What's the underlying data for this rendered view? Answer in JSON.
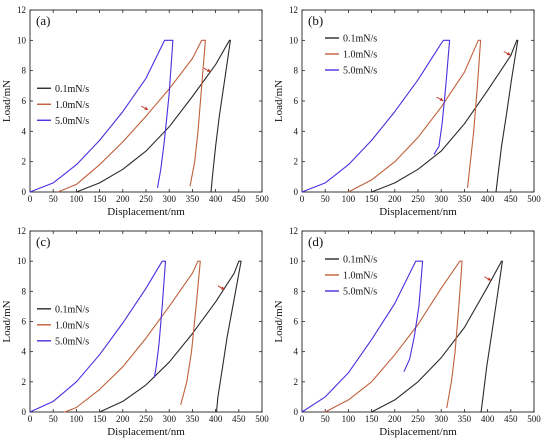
{
  "chart_data": [
    {
      "type": "line",
      "panel_label": "(a)",
      "xlabel": "Displacement/nm",
      "ylabel": "Load/mN",
      "xlim": [
        0,
        500
      ],
      "ylim": [
        0,
        12
      ],
      "xticks": [
        0,
        50,
        100,
        150,
        200,
        250,
        300,
        350,
        400,
        450,
        500
      ],
      "yticks": [
        0,
        2,
        4,
        6,
        8,
        10,
        12
      ],
      "legend_position": "middle-left",
      "series": [
        {
          "name": "0.1mN/s",
          "color": "#2b2b2b",
          "loading": [
            [
              100,
              0
            ],
            [
              150,
              0.6
            ],
            [
              200,
              1.5
            ],
            [
              250,
              2.7
            ],
            [
              300,
              4.3
            ],
            [
              350,
              6.3
            ],
            [
              400,
              8.4
            ],
            [
              430,
              10
            ]
          ],
          "hold": [
            [
              430,
              10
            ],
            [
              432,
              10
            ]
          ],
          "unloading": [
            [
              432,
              10
            ],
            [
              420,
              7.5
            ],
            [
              408,
              5
            ],
            [
              400,
              3
            ],
            [
              393,
              1
            ],
            [
              390,
              0
            ]
          ]
        },
        {
          "name": "1.0mN/s",
          "color": "#c0603a",
          "loading": [
            [
              60,
              0
            ],
            [
              100,
              0.5
            ],
            [
              150,
              1.8
            ],
            [
              200,
              3.3
            ],
            [
              250,
              5
            ],
            [
              300,
              6.8
            ],
            [
              350,
              8.8
            ],
            [
              370,
              10
            ]
          ],
          "hold": [
            [
              370,
              10
            ],
            [
              378,
              10
            ]
          ],
          "unloading": [
            [
              378,
              10
            ],
            [
              370,
              7
            ],
            [
              362,
              4
            ],
            [
              355,
              2
            ],
            [
              345,
              0.4
            ]
          ]
        },
        {
          "name": "5.0mN/s",
          "color": "#4a2ee0",
          "loading": [
            [
              0,
              0
            ],
            [
              50,
              0.6
            ],
            [
              100,
              1.8
            ],
            [
              150,
              3.4
            ],
            [
              200,
              5.3
            ],
            [
              250,
              7.5
            ],
            [
              290,
              10
            ]
          ],
          "hold": [
            [
              290,
              10
            ],
            [
              308,
              10
            ]
          ],
          "unloading": [
            [
              308,
              10
            ],
            [
              300,
              6.5
            ],
            [
              290,
              3.5
            ],
            [
              282,
              1.5
            ],
            [
              275,
              0.3
            ]
          ]
        }
      ]
    },
    {
      "type": "line",
      "panel_label": "(b)",
      "xlabel": "Displacement/nm",
      "ylabel": "Load/mN",
      "xlim": [
        0,
        500
      ],
      "ylim": [
        0,
        12
      ],
      "xticks": [
        0,
        50,
        100,
        150,
        200,
        250,
        300,
        350,
        400,
        450,
        500
      ],
      "yticks": [
        0,
        2,
        4,
        6,
        8,
        10,
        12
      ],
      "legend_position": "top-right",
      "series": [
        {
          "name": "0.1mN/s",
          "color": "#2b2b2b",
          "loading": [
            [
              150,
              0
            ],
            [
              200,
              0.6
            ],
            [
              250,
              1.5
            ],
            [
              300,
              2.7
            ],
            [
              350,
              4.5
            ],
            [
              400,
              6.7
            ],
            [
              450,
              9
            ],
            [
              463,
              10
            ]
          ],
          "hold": [
            [
              463,
              10
            ],
            [
              465,
              10
            ]
          ],
          "unloading": [
            [
              465,
              10
            ],
            [
              452,
              7.5
            ],
            [
              440,
              5
            ],
            [
              430,
              3
            ],
            [
              422,
              1
            ],
            [
              418,
              0
            ]
          ]
        },
        {
          "name": "1.0mN/s",
          "color": "#c0603a",
          "loading": [
            [
              100,
              0
            ],
            [
              150,
              0.8
            ],
            [
              200,
              2
            ],
            [
              250,
              3.6
            ],
            [
              300,
              5.6
            ],
            [
              350,
              7.9
            ],
            [
              380,
              10
            ]
          ],
          "hold": [
            [
              380,
              10
            ],
            [
              385,
              10
            ]
          ],
          "unloading": [
            [
              385,
              10
            ],
            [
              378,
              7
            ],
            [
              370,
              4
            ],
            [
              363,
              2
            ],
            [
              357,
              0.3
            ]
          ]
        },
        {
          "name": "5.0mN/s",
          "color": "#4a2ee0",
          "loading": [
            [
              0,
              0
            ],
            [
              50,
              0.6
            ],
            [
              100,
              1.8
            ],
            [
              150,
              3.4
            ],
            [
              200,
              5.3
            ],
            [
              250,
              7.4
            ],
            [
              300,
              9.8
            ],
            [
              305,
              10
            ]
          ],
          "hold": [
            [
              305,
              10
            ],
            [
              318,
              10
            ]
          ],
          "unloading": [
            [
              318,
              10
            ],
            [
              310,
              7
            ],
            [
              302,
              4.5
            ],
            [
              295,
              3
            ],
            [
              285,
              2.5
            ]
          ]
        }
      ]
    },
    {
      "type": "line",
      "panel_label": "(c)",
      "xlabel": "Displacement/nm",
      "ylabel": "Load/mN",
      "xlim": [
        0,
        500
      ],
      "ylim": [
        0,
        12
      ],
      "xticks": [
        0,
        50,
        100,
        150,
        200,
        250,
        300,
        350,
        400,
        450,
        500
      ],
      "yticks": [
        0,
        2,
        4,
        6,
        8,
        10,
        12
      ],
      "legend_position": "middle-left",
      "series": [
        {
          "name": "0.1mN/s",
          "color": "#2b2b2b",
          "loading": [
            [
              150,
              0
            ],
            [
              200,
              0.7
            ],
            [
              250,
              1.8
            ],
            [
              300,
              3.3
            ],
            [
              350,
              5.2
            ],
            [
              400,
              7.3
            ],
            [
              440,
              9.2
            ],
            [
              450,
              10
            ]
          ],
          "hold": [
            [
              450,
              10
            ],
            [
              455,
              10
            ]
          ],
          "unloading": [
            [
              455,
              10
            ],
            [
              440,
              7.5
            ],
            [
              425,
              5
            ],
            [
              415,
              3
            ],
            [
              405,
              1
            ],
            [
              402,
              0
            ]
          ]
        },
        {
          "name": "1.0mN/s",
          "color": "#c0603a",
          "loading": [
            [
              75,
              0
            ],
            [
              100,
              0.3
            ],
            [
              150,
              1.5
            ],
            [
              200,
              3
            ],
            [
              250,
              4.9
            ],
            [
              300,
              7
            ],
            [
              350,
              9.2
            ],
            [
              362,
              10
            ]
          ],
          "hold": [
            [
              362,
              10
            ],
            [
              367,
              10
            ]
          ],
          "unloading": [
            [
              367,
              10
            ],
            [
              358,
              7
            ],
            [
              348,
              4
            ],
            [
              338,
              2
            ],
            [
              325,
              0.5
            ]
          ]
        },
        {
          "name": "5.0mN/s",
          "color": "#4a2ee0",
          "loading": [
            [
              0,
              0
            ],
            [
              50,
              0.7
            ],
            [
              100,
              2
            ],
            [
              150,
              3.8
            ],
            [
              200,
              5.9
            ],
            [
              250,
              8.2
            ],
            [
              285,
              10
            ]
          ],
          "hold": [
            [
              285,
              10
            ],
            [
              292,
              10
            ]
          ],
          "unloading": [
            [
              292,
              10
            ],
            [
              285,
              7
            ],
            [
              278,
              4.5
            ],
            [
              272,
              3
            ],
            [
              268,
              2.3
            ]
          ]
        }
      ]
    },
    {
      "type": "line",
      "panel_label": "(d)",
      "xlabel": "Displacement/nm",
      "ylabel": "Load/mN",
      "xlim": [
        0,
        500
      ],
      "ylim": [
        0,
        12
      ],
      "xticks": [
        0,
        50,
        100,
        150,
        200,
        250,
        300,
        350,
        400,
        450,
        500
      ],
      "yticks": [
        0,
        2,
        4,
        6,
        8,
        10,
        12
      ],
      "legend_position": "top-right",
      "series": [
        {
          "name": "0.1mN/s",
          "color": "#2b2b2b",
          "loading": [
            [
              150,
              0
            ],
            [
              200,
              0.8
            ],
            [
              250,
              2
            ],
            [
              300,
              3.6
            ],
            [
              350,
              5.6
            ],
            [
              400,
              8.3
            ],
            [
              430,
              10
            ]
          ],
          "hold": [
            [
              430,
              10
            ],
            [
              432,
              10
            ]
          ],
          "unloading": [
            [
              432,
              10
            ],
            [
              420,
              7.5
            ],
            [
              408,
              5
            ],
            [
              398,
              3
            ],
            [
              390,
              1
            ],
            [
              386,
              0
            ]
          ]
        },
        {
          "name": "1.0mN/s",
          "color": "#c0603a",
          "loading": [
            [
              50,
              0
            ],
            [
              100,
              0.8
            ],
            [
              150,
              2
            ],
            [
              200,
              3.8
            ],
            [
              250,
              5.8
            ],
            [
              300,
              8.2
            ],
            [
              340,
              10
            ]
          ],
          "hold": [
            [
              340,
              10
            ],
            [
              345,
              10
            ]
          ],
          "unloading": [
            [
              345,
              10
            ],
            [
              338,
              7
            ],
            [
              330,
              4
            ],
            [
              322,
              2
            ],
            [
              312,
              0.3
            ]
          ]
        },
        {
          "name": "5.0mN/s",
          "color": "#4a2ee0",
          "loading": [
            [
              0,
              0
            ],
            [
              50,
              1
            ],
            [
              100,
              2.6
            ],
            [
              150,
              4.8
            ],
            [
              200,
              7.2
            ],
            [
              245,
              10
            ]
          ],
          "hold": [
            [
              245,
              10
            ],
            [
              260,
              10
            ]
          ],
          "unloading": [
            [
              260,
              10
            ],
            [
              252,
              7
            ],
            [
              242,
              5
            ],
            [
              232,
              3.5
            ],
            [
              220,
              2.7
            ]
          ]
        }
      ]
    }
  ]
}
